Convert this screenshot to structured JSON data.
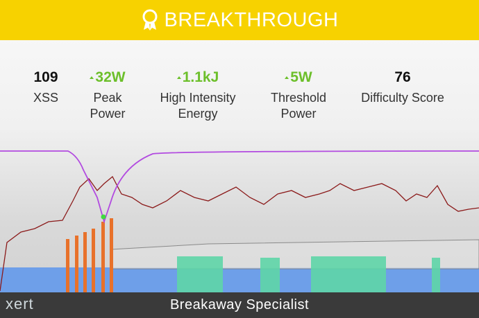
{
  "header": {
    "title": "BREAKTHROUGH"
  },
  "stats": [
    {
      "value": "109",
      "label_lines": [
        "XSS"
      ],
      "up": false
    },
    {
      "value": "32W",
      "label_lines": [
        "Peak",
        "Power"
      ],
      "up": true
    },
    {
      "value": "1.1kJ",
      "label_lines": [
        "High Intensity",
        "Energy"
      ],
      "up": true
    },
    {
      "value": "5W",
      "label_lines": [
        "Threshold",
        "Power"
      ],
      "up": true
    },
    {
      "value": "76",
      "label_lines": [
        "Difficulty Score"
      ],
      "up": false
    }
  ],
  "footer": {
    "logo": "xert",
    "title": "Breakaway Specialist"
  }
}
